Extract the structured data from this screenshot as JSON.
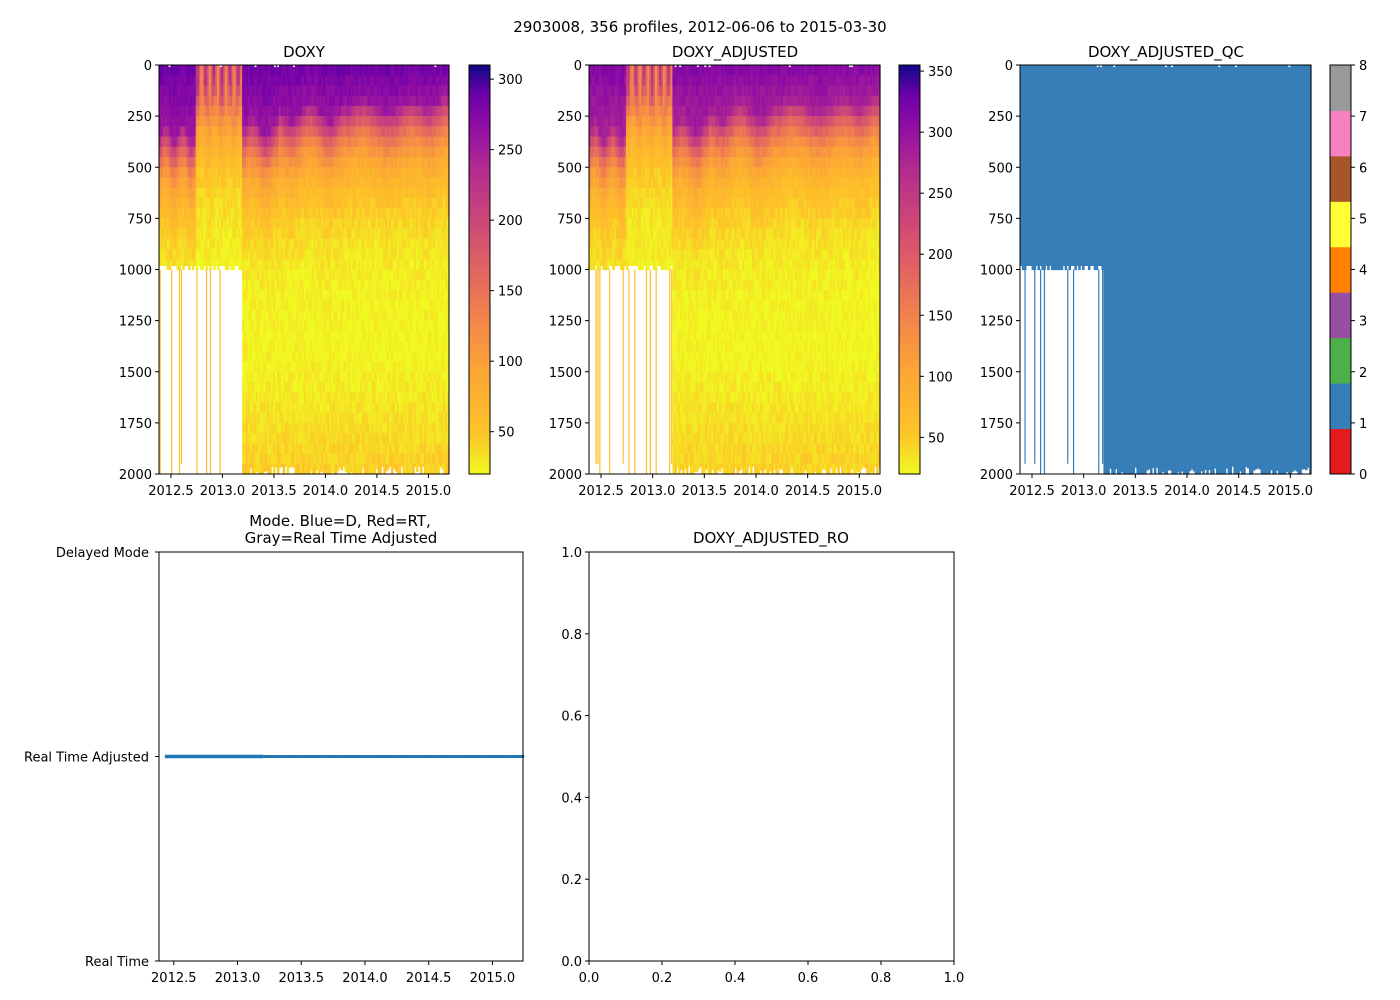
{
  "suptitle": "2903008, 356 profiles, 2012-06-06 to 2015-03-30",
  "chart_data": [
    {
      "type": "heatmap",
      "title": "DOXY",
      "xlim": [
        2012.384,
        2015.2
      ],
      "ylim": [
        2000,
        0
      ],
      "xticks": [
        "2012.5",
        "2013.0",
        "2013.5",
        "2014.0",
        "2014.5",
        "2015.0"
      ],
      "xtick_values": [
        2012.5,
        2013.0,
        2013.5,
        2014.0,
        2014.5,
        2015.0
      ],
      "yticks": [
        "0",
        "250",
        "500",
        "750",
        "1000",
        "1250",
        "1500",
        "1750",
        "2000"
      ],
      "ytick_values": [
        0,
        250,
        500,
        750,
        1000,
        1250,
        1500,
        1750,
        2000
      ],
      "colormap": "plasma_r",
      "clim": [
        20,
        310
      ],
      "colorbar_ticks": [
        "50",
        "100",
        "150",
        "200",
        "250",
        "300"
      ],
      "colorbar_tick_values": [
        50,
        100,
        150,
        200,
        250,
        300
      ],
      "shallow_profiles_end": 2013.2,
      "shallow_profile_max_depth": 1000
    },
    {
      "type": "heatmap",
      "title": "DOXY_ADJUSTED",
      "xlim": [
        2012.384,
        2015.2
      ],
      "ylim": [
        2000,
        0
      ],
      "xticks": [
        "2012.5",
        "2013.0",
        "2013.5",
        "2014.0",
        "2014.5",
        "2015.0"
      ],
      "xtick_values": [
        2012.5,
        2013.0,
        2013.5,
        2014.0,
        2014.5,
        2015.0
      ],
      "yticks": [
        "0",
        "250",
        "500",
        "750",
        "1000",
        "1250",
        "1500",
        "1750",
        "2000"
      ],
      "ytick_values": [
        0,
        250,
        500,
        750,
        1000,
        1250,
        1500,
        1750,
        2000
      ],
      "colormap": "plasma_r",
      "clim": [
        20,
        355
      ],
      "colorbar_ticks": [
        "50",
        "100",
        "150",
        "200",
        "250",
        "300",
        "350"
      ],
      "colorbar_tick_values": [
        50,
        100,
        150,
        200,
        250,
        300,
        350
      ],
      "shallow_profiles_end": 2013.2,
      "shallow_profile_max_depth": 1000
    },
    {
      "type": "heatmap",
      "title": "DOXY_ADJUSTED_QC",
      "xlim": [
        2012.384,
        2015.2
      ],
      "ylim": [
        2000,
        0
      ],
      "xticks": [
        "2012.5",
        "2013.0",
        "2013.5",
        "2014.0",
        "2014.5",
        "2015.0"
      ],
      "xtick_values": [
        2012.5,
        2013.0,
        2013.5,
        2014.0,
        2014.5,
        2015.0
      ],
      "yticks": [
        "0",
        "250",
        "500",
        "750",
        "1000",
        "1250",
        "1500",
        "1750",
        "2000"
      ],
      "ytick_values": [
        0,
        250,
        500,
        750,
        1000,
        1250,
        1500,
        1750,
        2000
      ],
      "qc_value_shown": 1,
      "clim": [
        0,
        8
      ],
      "colorbar_ticks": [
        "0",
        "1",
        "2",
        "3",
        "4",
        "5",
        "6",
        "7",
        "8"
      ],
      "colorbar_tick_values": [
        0,
        1,
        2,
        3,
        4,
        5,
        6,
        7,
        8
      ],
      "qc_colors": [
        "#e41a1c",
        "#377eb8",
        "#4daf4a",
        "#984ea3",
        "#ff7f00",
        "#ffff33",
        "#a65628",
        "#f781bf",
        "#999999"
      ],
      "shallow_profiles_end": 2013.2,
      "shallow_profile_max_depth": 1000
    },
    {
      "type": "line",
      "title_line1": "Mode. Blue=D, Red=RT,",
      "title_line2": "Gray=Real Time Adjusted",
      "xlim": [
        2012.384,
        2015.24
      ],
      "xticks": [
        "2012.5",
        "2013.0",
        "2013.5",
        "2014.0",
        "2014.5",
        "2015.0"
      ],
      "xtick_values": [
        2012.5,
        2013.0,
        2013.5,
        2014.0,
        2014.5,
        2015.0
      ],
      "yticks": [
        "Real Time",
        "Real Time Adjusted",
        "Delayed Mode"
      ],
      "ytick_values": [
        0,
        1,
        2
      ],
      "ylim": [
        0,
        2
      ],
      "series": [
        {
          "name": "mode",
          "y": 1,
          "x_start": 2012.43,
          "x_end": 2015.24,
          "dense_until": 2013.2,
          "color": "#1f77b4"
        }
      ]
    },
    {
      "type": "line",
      "title": "DOXY_ADJUSTED_RO",
      "xlim": [
        0,
        1
      ],
      "ylim": [
        0,
        1
      ],
      "xticks": [
        "0.0",
        "0.2",
        "0.4",
        "0.6",
        "0.8",
        "1.0"
      ],
      "xtick_values": [
        0,
        0.2,
        0.4,
        0.6,
        0.8,
        1.0
      ],
      "yticks": [
        "0.0",
        "0.2",
        "0.4",
        "0.6",
        "0.8",
        "1.0"
      ],
      "ytick_values": [
        0,
        0.2,
        0.4,
        0.6,
        0.8,
        1.0
      ],
      "series": []
    }
  ]
}
